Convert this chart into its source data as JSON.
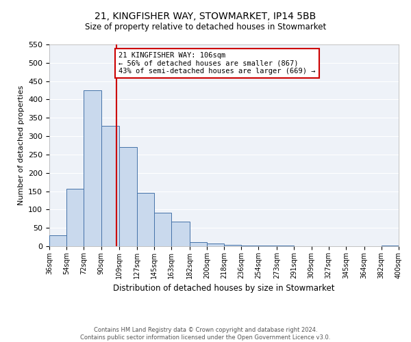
{
  "title": "21, KINGFISHER WAY, STOWMARKET, IP14 5BB",
  "subtitle": "Size of property relative to detached houses in Stowmarket",
  "xlabel": "Distribution of detached houses by size in Stowmarket",
  "ylabel": "Number of detached properties",
  "bin_edges": [
    36,
    54,
    72,
    90,
    109,
    127,
    145,
    163,
    182,
    200,
    218,
    236,
    254,
    273,
    291,
    309,
    327,
    345,
    364,
    382,
    400
  ],
  "bin_counts": [
    29,
    156,
    425,
    328,
    271,
    145,
    91,
    67,
    12,
    8,
    4,
    1,
    1,
    1,
    0,
    0,
    0,
    0,
    0,
    1
  ],
  "bar_facecolor": "#c9d9ed",
  "bar_edgecolor": "#4472a8",
  "vline_x": 106,
  "vline_color": "#cc0000",
  "ylim": [
    0,
    550
  ],
  "yticks": [
    0,
    50,
    100,
    150,
    200,
    250,
    300,
    350,
    400,
    450,
    500,
    550
  ],
  "annotation_text": "21 KINGFISHER WAY: 106sqm\n← 56% of detached houses are smaller (867)\n43% of semi-detached houses are larger (669) →",
  "annotation_box_edgecolor": "#cc0000",
  "footer_line1": "Contains HM Land Registry data © Crown copyright and database right 2024.",
  "footer_line2": "Contains public sector information licensed under the Open Government Licence v3.0.",
  "bg_color": "#eef2f8",
  "grid_color": "#ffffff",
  "tick_labels": [
    "36sqm",
    "54sqm",
    "72sqm",
    "90sqm",
    "109sqm",
    "127sqm",
    "145sqm",
    "163sqm",
    "182sqm",
    "200sqm",
    "218sqm",
    "236sqm",
    "254sqm",
    "273sqm",
    "291sqm",
    "309sqm",
    "327sqm",
    "345sqm",
    "364sqm",
    "382sqm",
    "400sqm"
  ]
}
